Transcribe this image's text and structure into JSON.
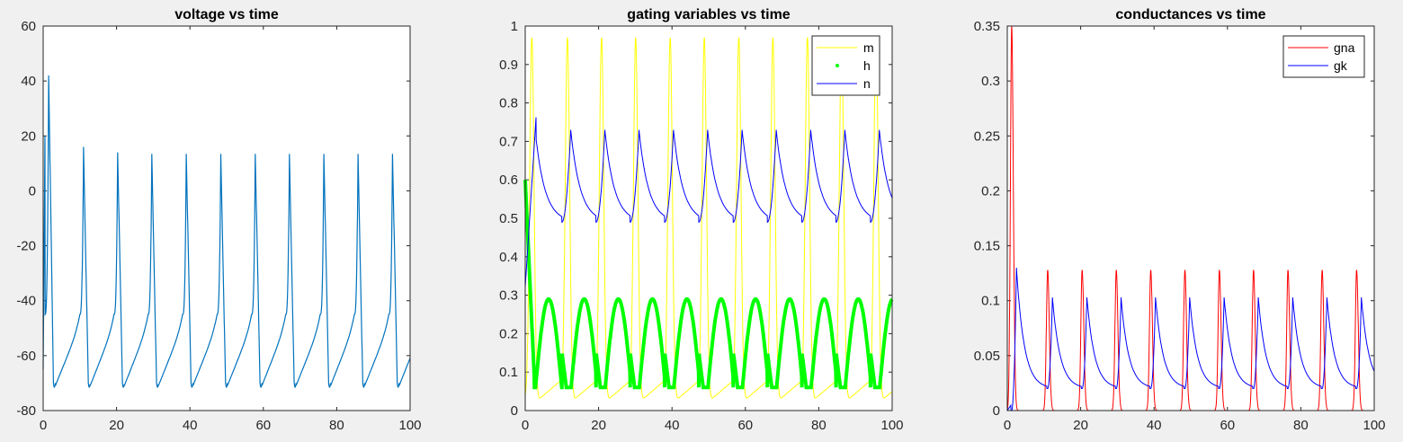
{
  "colors": {
    "background": "#f0f0f0",
    "axes_bg": "#ffffff",
    "axis": "#262626",
    "voltage": "#0072bd",
    "m": "#ffff00",
    "h": "#00ff00",
    "n": "#0000ff",
    "gna": "#ff0000",
    "gk": "#0000ff"
  },
  "chart_data": [
    {
      "type": "line",
      "title": "voltage vs time",
      "xlabel": "",
      "ylabel": "",
      "xlim": [
        0,
        100
      ],
      "ylim": [
        -80,
        60
      ],
      "xticks": [
        0,
        20,
        40,
        60,
        80,
        100
      ],
      "yticks": [
        -80,
        -60,
        -40,
        -20,
        0,
        20,
        40,
        60
      ],
      "grid": false,
      "legend": null,
      "series": [
        {
          "color": "#0072bd",
          "x": [
            0,
            0.8,
            1.5,
            2.3,
            3.0,
            4.0,
            6.0,
            8.0,
            9.5,
            10.3,
            10.8,
            11.0,
            11.3,
            11.8,
            12.5,
            13.5,
            20.0,
            20.3,
            29.3,
            29.6,
            38.7,
            39.0,
            48.1,
            48.4,
            57.5,
            57.8,
            66.8,
            67.1,
            76.2,
            76.5,
            85.5,
            85.8,
            94.9,
            95.2,
            100
          ],
          "y": [
            -65,
            20,
            42,
            10,
            -40,
            -72,
            -68,
            -62,
            -52,
            -30,
            5,
            16,
            0,
            -40,
            -67,
            -71,
            14,
            0,
            13,
            0,
            13,
            0,
            13,
            0,
            13,
            0,
            13,
            0,
            13,
            0,
            13,
            0,
            13,
            0,
            -60
          ]
        }
      ]
    },
    {
      "type": "line",
      "title": "gating variables vs time",
      "xlabel": "",
      "ylabel": "",
      "xlim": [
        0,
        100
      ],
      "ylim": [
        0,
        1
      ],
      "xticks": [
        0,
        20,
        40,
        60,
        80,
        100
      ],
      "yticks": [
        0,
        0.1,
        0.2,
        0.3,
        0.4,
        0.5,
        0.6,
        0.7,
        0.8,
        0.9,
        1
      ],
      "grid": false,
      "legend": "top-right",
      "series": [
        {
          "name": "m",
          "color": "#ffff00",
          "marker": "line",
          "period": 9.35,
          "first_peak": 1.8,
          "peak": 0.97,
          "trough": 0.03
        },
        {
          "name": "h",
          "color": "#00ff00",
          "marker": "dot",
          "period": 9.35,
          "start": 0.6,
          "peak": 0.29,
          "trough": 0.06
        },
        {
          "name": "n",
          "color": "#0000ff",
          "marker": "line",
          "period": 9.35,
          "start": 0.32,
          "peak": 0.73,
          "trough": 0.49
        }
      ]
    },
    {
      "type": "line",
      "title": "conductances vs time",
      "xlabel": "",
      "ylabel": "",
      "xlim": [
        0,
        100
      ],
      "ylim": [
        0,
        0.35
      ],
      "xticks": [
        0,
        20,
        40,
        60,
        80,
        100
      ],
      "yticks": [
        0,
        0.05,
        0.1,
        0.15,
        0.2,
        0.25,
        0.3,
        0.35
      ],
      "grid": false,
      "legend": "top-right",
      "series": [
        {
          "name": "gna",
          "color": "#ff0000",
          "period": 9.35,
          "first_peak": 0.35,
          "peak": 0.128,
          "base": 0.0
        },
        {
          "name": "gk",
          "color": "#0000ff",
          "period": 9.35,
          "first_peak": 0.13,
          "peak": 0.103,
          "trough": 0.02
        }
      ]
    }
  ]
}
